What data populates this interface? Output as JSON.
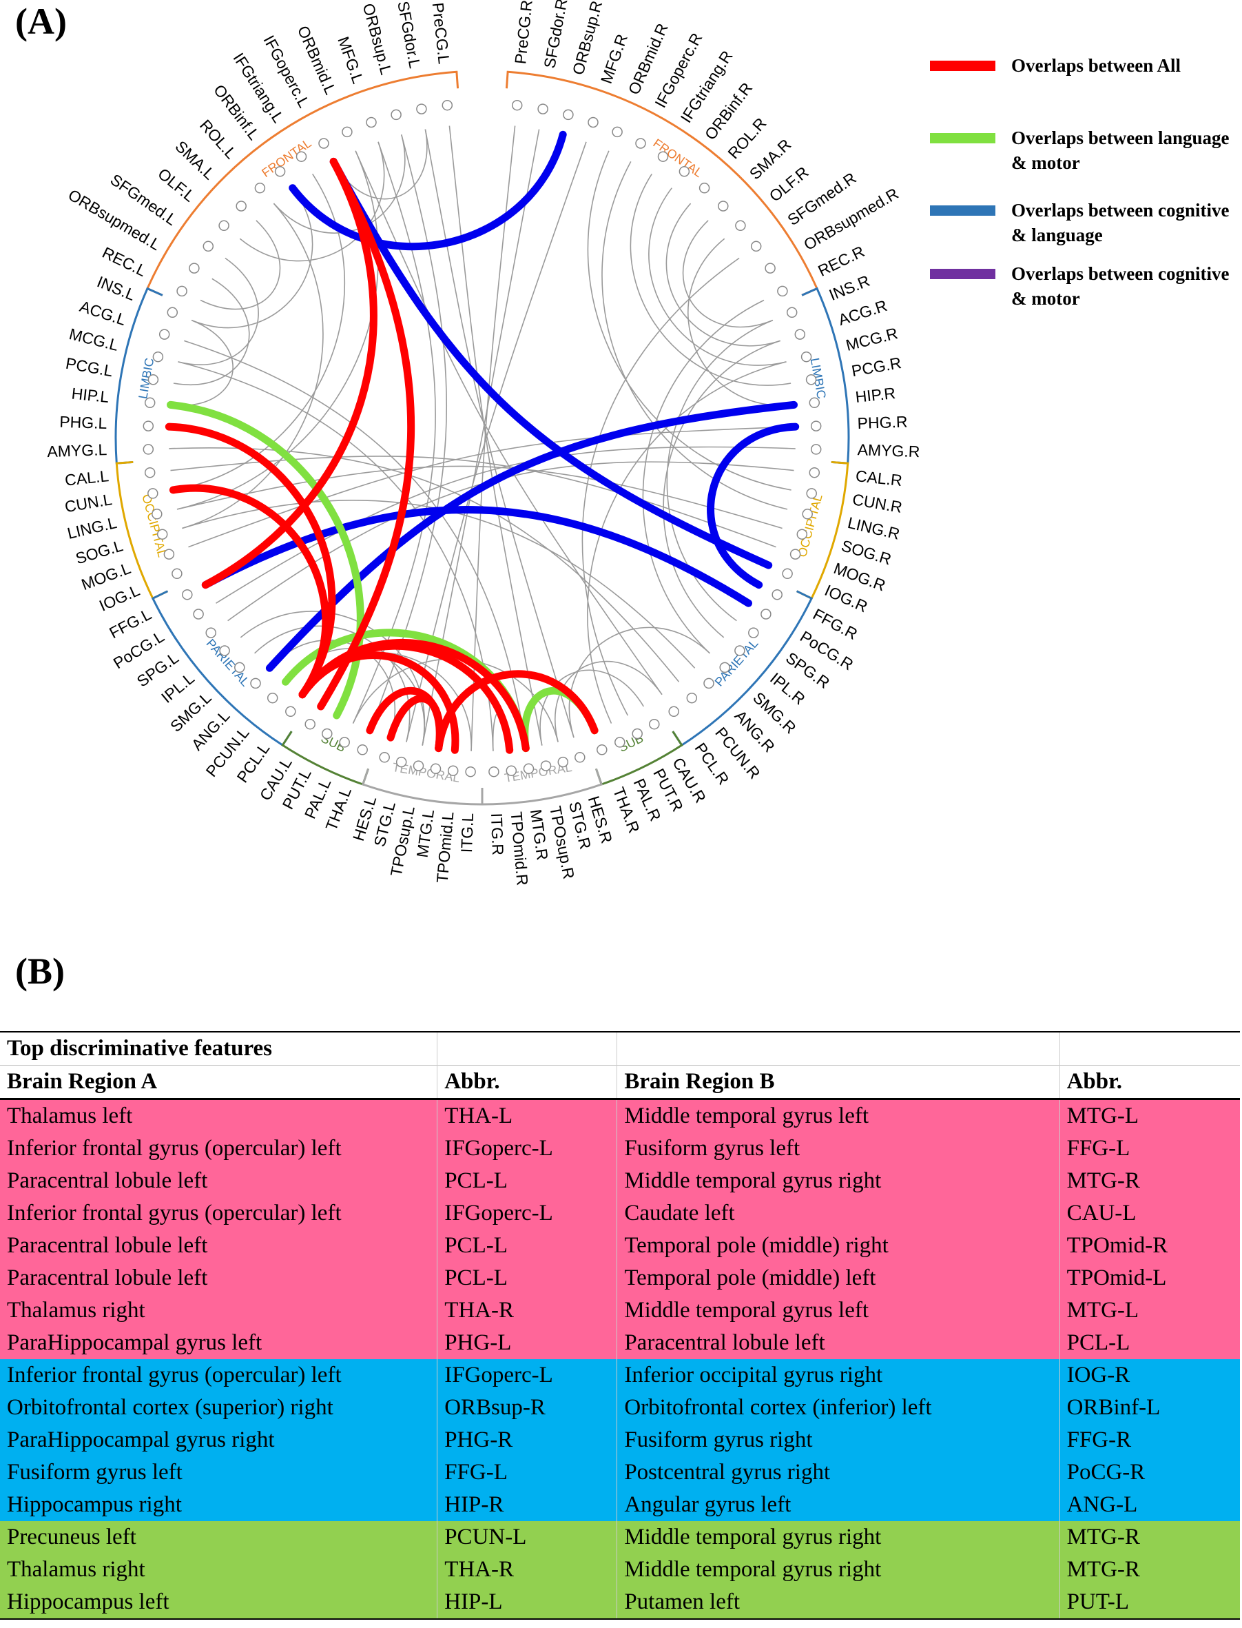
{
  "panel_a_label": "(A)",
  "panel_b_label": "(B)",
  "legend": [
    {
      "label": "Overlaps between All",
      "color": "#ff0000"
    },
    {
      "label": "Overlaps between language & motor",
      "color": "#80e040"
    },
    {
      "label": "Overlaps  between cognitive & language",
      "color": "#2e75b6"
    },
    {
      "label": "Overlaps between cognitive & motor",
      "color": "#7030a0"
    }
  ],
  "lobes": [
    {
      "label": "FRONTAL",
      "color": "#ed7d31"
    },
    {
      "label": "FRONTAL",
      "color": "#ed7d31"
    },
    {
      "label": "LIMBIC",
      "color": "#2e75b6"
    },
    {
      "label": "LIMBIC",
      "color": "#2e75b6"
    },
    {
      "label": "OCCIPITAL",
      "color": "#e0a800"
    },
    {
      "label": "OCCIPITAL",
      "color": "#e0a800"
    },
    {
      "label": "PARIETAL",
      "color": "#2e75b6"
    },
    {
      "label": "PARIETAL",
      "color": "#2e75b6"
    },
    {
      "label": "SUB",
      "color": "#548235"
    },
    {
      "label": "SUB",
      "color": "#548235"
    },
    {
      "label": "TEMPORAL",
      "color": "#a6a6a6"
    },
    {
      "label": "TEMPORAL",
      "color": "#a6a6a6"
    }
  ],
  "regions": [
    "PreCG.L",
    "SFGdor.L",
    "ORBsup.L",
    "MFG.L",
    "ORBmid.L",
    "IFGoperc.L",
    "IFGtriang.L",
    "ORBinf.L",
    "ROL.L",
    "SMA.L",
    "OLF.L",
    "SFGmed.L",
    "ORBsupmed.L",
    "REC.L",
    "INS.L",
    "ACG.L",
    "MCG.L",
    "PCG.L",
    "HIP.L",
    "PHG.L",
    "AMYG.L",
    "CAL.L",
    "CUN.L",
    "LING.L",
    "SOG.L",
    "MOG.L",
    "IOG.L",
    "FFG.L",
    "PoCG.L",
    "SPG.L",
    "IPL.L",
    "SMG.L",
    "ANG.L",
    "PCUN.L",
    "PCL.L",
    "CAU.L",
    "PUT.L",
    "PAL.L",
    "THA.L",
    "HES.L",
    "STG.L",
    "TPOsup.L",
    "MTG.L",
    "TPOmid.L",
    "ITG.L",
    "PreCG.R",
    "SFGdor.R",
    "ORBsup.R",
    "MFG.R",
    "ORBmid.R",
    "IFGoperc.R",
    "IFGtriang.R",
    "ORBinf.R",
    "ROL.R",
    "SMA.R",
    "OLF.R",
    "SFGmed.R",
    "ORBsupmed.R",
    "REC.R",
    "INS.R",
    "ACG.R",
    "MCG.R",
    "PCG.R",
    "HIP.R",
    "PHG.R",
    "AMYG.R",
    "CAL.R",
    "CUN.R",
    "LING.R",
    "SOG.R",
    "MOG.R",
    "IOG.R",
    "FFG.R",
    "PoCG.R",
    "SPG.R",
    "IPL.R",
    "SMG.R",
    "ANG.R",
    "PCUN.R",
    "PCL.R",
    "CAU.R",
    "PUT.R",
    "PAL.R",
    "THA.R",
    "HES.R",
    "STG.R",
    "TPOsup.R",
    "MTG.R",
    "TPOmid.R",
    "ITG.R"
  ],
  "connections": [
    {
      "a": "THA.L",
      "b": "MTG.L",
      "type": "all"
    },
    {
      "a": "IFGoperc.L",
      "b": "FFG.L",
      "type": "all"
    },
    {
      "a": "PCL.L",
      "b": "MTG.R",
      "type": "all"
    },
    {
      "a": "IFGoperc.L",
      "b": "CAU.L",
      "type": "all"
    },
    {
      "a": "PCL.L",
      "b": "TPOmid.R",
      "type": "all"
    },
    {
      "a": "PCL.L",
      "b": "TPOmid.L",
      "type": "all"
    },
    {
      "a": "THA.R",
      "b": "MTG.L",
      "type": "all"
    },
    {
      "a": "PHG.L",
      "b": "PCL.L",
      "type": "all"
    },
    {
      "a": "CUN.L",
      "b": "PCL.L",
      "type": "all"
    },
    {
      "a": "HES.L",
      "b": "MTG.L",
      "type": "all"
    },
    {
      "a": "IFGoperc.L",
      "b": "IOG.R",
      "type": "cog_lang"
    },
    {
      "a": "ORBsup.R",
      "b": "ORBinf.L",
      "type": "cog_lang"
    },
    {
      "a": "PHG.R",
      "b": "FFG.R",
      "type": "cog_lang"
    },
    {
      "a": "FFG.L",
      "b": "PoCG.R",
      "type": "cog_lang"
    },
    {
      "a": "HIP.R",
      "b": "ANG.L",
      "type": "cog_lang"
    },
    {
      "a": "PCUN.L",
      "b": "MTG.R",
      "type": "lang_motor"
    },
    {
      "a": "THA.R",
      "b": "MTG.R",
      "type": "lang_motor"
    },
    {
      "a": "HIP.L",
      "b": "PUT.L",
      "type": "lang_motor"
    }
  ],
  "thin_connections": [
    [
      "SFGdor.L",
      "IFGoperc.L"
    ],
    [
      "ORBsup.L",
      "ROL.L"
    ],
    [
      "MFG.L",
      "OLF.L"
    ],
    [
      "SMA.L",
      "REC.L"
    ],
    [
      "ORBinf.L",
      "INS.L"
    ],
    [
      "SFGmed.L",
      "MCG.L"
    ],
    [
      "ORBsupmed.L",
      "PCG.L"
    ],
    [
      "ACG.L",
      "MTG.R"
    ],
    [
      "MCG.L",
      "ITG.R"
    ],
    [
      "AMYG.L",
      "PCUN.R"
    ],
    [
      "CAL.L",
      "MOG.R"
    ],
    [
      "LING.L",
      "SOG.R"
    ],
    [
      "SOG.L",
      "ANG.R"
    ],
    [
      "MOG.L",
      "PHG.R"
    ],
    [
      "PoCG.L",
      "AMYG.R"
    ],
    [
      "SPG.L",
      "CAL.R"
    ],
    [
      "IPL.L",
      "TPOsup.L"
    ],
    [
      "SMG.L",
      "STG.L"
    ],
    [
      "ANG.L",
      "HES.L"
    ],
    [
      "PCUN.L",
      "TPOsup.L"
    ],
    [
      "PCL.L",
      "ITG.L"
    ],
    [
      "PAL.L",
      "STG.R"
    ],
    [
      "PreCG.L",
      "TPOsup.R"
    ],
    [
      "PreCG.R",
      "ITG.L"
    ],
    [
      "SFGdor.R",
      "TPOsup.L"
    ],
    [
      "MFG.R",
      "STG.L"
    ],
    [
      "ORBmid.R",
      "CUN.R"
    ],
    [
      "IFGoperc.R",
      "LING.R"
    ],
    [
      "IFGtriang.R",
      "PCG.R"
    ],
    [
      "ORBinf.R",
      "MCG.R"
    ],
    [
      "ROL.R",
      "ACG.R"
    ],
    [
      "SMA.R",
      "INS.R"
    ],
    [
      "OLF.R",
      "HIP.R"
    ],
    [
      "SFGmed.R",
      "PUT.R"
    ],
    [
      "REC.R",
      "SMG.R"
    ],
    [
      "INS.R",
      "SPG.R"
    ],
    [
      "ACG.R",
      "IPL.R"
    ],
    [
      "MCG.R",
      "PAL.R"
    ],
    [
      "HES.R",
      "SMG.R"
    ],
    [
      "STG.R",
      "PCL.R"
    ],
    [
      "TPOsup.R",
      "CAU.R"
    ],
    [
      "ITG.R",
      "TPOmid.R"
    ],
    [
      "ORBmid.L",
      "LING.L"
    ],
    [
      "IFGtriang.L",
      "CUN.L"
    ],
    [
      "ROL.L",
      "SOG.L"
    ],
    [
      "INS.L",
      "HIP.L"
    ],
    [
      "MFG.L",
      "PAL.L"
    ],
    [
      "ORBsup.L",
      "THA.L"
    ],
    [
      "SFGdor.L",
      "HES.R"
    ],
    [
      "ORBmid.L",
      "PCL.R"
    ]
  ],
  "table": {
    "title": "Top discriminative features",
    "headers": [
      "Brain Region A",
      "Abbr.",
      "Brain Region B",
      "Abbr."
    ],
    "rows": [
      {
        "group": "all",
        "cells": [
          "Thalamus left",
          "THA-L",
          "Middle temporal gyrus left",
          "MTG-L"
        ]
      },
      {
        "group": "all",
        "cells": [
          "Inferior frontal gyrus (opercular) left",
          "IFGoperc-L",
          "Fusiform gyrus left",
          "FFG-L"
        ]
      },
      {
        "group": "all",
        "cells": [
          "Paracentral lobule left",
          "PCL-L",
          "Middle temporal gyrus right",
          "MTG-R"
        ]
      },
      {
        "group": "all",
        "cells": [
          "Inferior frontal gyrus (opercular) left",
          "IFGoperc-L",
          "Caudate left",
          "CAU-L"
        ]
      },
      {
        "group": "all",
        "cells": [
          "Paracentral lobule left",
          "PCL-L",
          "Temporal pole (middle) right",
          "TPOmid-R"
        ]
      },
      {
        "group": "all",
        "cells": [
          "Paracentral lobule left",
          "PCL-L",
          "Temporal pole (middle) left",
          "TPOmid-L"
        ]
      },
      {
        "group": "all",
        "cells": [
          "Thalamus right",
          "THA-R",
          "Middle temporal gyrus left",
          "MTG-L"
        ]
      },
      {
        "group": "all",
        "cells": [
          "ParaHippocampal gyrus left",
          "PHG-L",
          "Paracentral lobule left",
          "PCL-L"
        ]
      },
      {
        "group": "cog_lang",
        "cells": [
          "Inferior frontal gyrus (opercular) left",
          "IFGoperc-L",
          "Inferior occipital gyrus right",
          "IOG-R"
        ]
      },
      {
        "group": "cog_lang",
        "cells": [
          "Orbitofrontal cortex (superior) right",
          "ORBsup-R",
          "Orbitofrontal cortex (inferior) left",
          "ORBinf-L"
        ]
      },
      {
        "group": "cog_lang",
        "cells": [
          "ParaHippocampal gyrus right",
          "PHG-R",
          "Fusiform gyrus right",
          "FFG-R"
        ]
      },
      {
        "group": "cog_lang",
        "cells": [
          "Fusiform gyrus left",
          "FFG-L",
          "Postcentral gyrus right",
          "PoCG-R"
        ]
      },
      {
        "group": "cog_lang",
        "cells": [
          "Hippocampus right",
          "HIP-R",
          "Angular gyrus left",
          "ANG-L"
        ]
      },
      {
        "group": "lang_motor",
        "cells": [
          "Precuneus left",
          "PCUN-L",
          "Middle temporal gyrus right",
          "MTG-R"
        ]
      },
      {
        "group": "lang_motor",
        "cells": [
          "Thalamus right",
          "THA-R",
          "Middle temporal gyrus right",
          "MTG-R"
        ]
      },
      {
        "group": "lang_motor",
        "cells": [
          "Hippocampus left",
          "HIP-L",
          "Putamen left",
          "PUT-L"
        ]
      }
    ]
  },
  "colors": {
    "all": "#ff0000",
    "lang_motor": "#80e040",
    "cog_lang": "#0000ee",
    "thin": "#9a9a9a",
    "row_all": "#ff6699",
    "row_cog_lang": "#00b0f0",
    "row_lang_motor": "#92d050"
  }
}
